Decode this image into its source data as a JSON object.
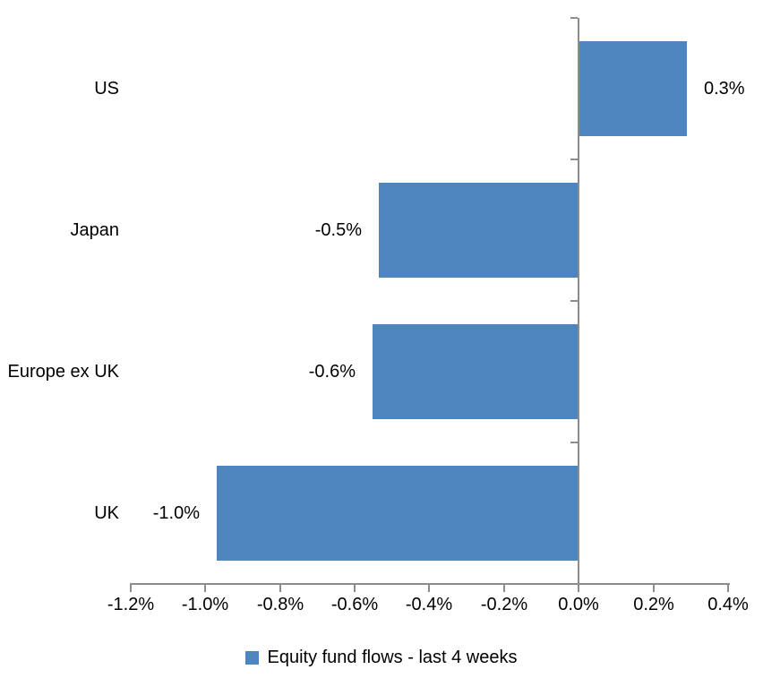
{
  "chart_data": {
    "type": "bar",
    "orientation": "horizontal",
    "title": "",
    "categories": [
      "US",
      "Japan",
      "Europe ex UK",
      "UK"
    ],
    "series": [
      {
        "name": "Equity fund flows - last 4 weeks",
        "values": [
          0.3,
          -0.5,
          -0.6,
          -1.0
        ],
        "value_labels": [
          "0.3%",
          "-0.5%",
          "-0.6%",
          "-1.0%"
        ],
        "bar_extents_as_drawn": [
          0.29,
          -0.535,
          -0.552,
          -0.969
        ],
        "color": "#4D86BE"
      }
    ],
    "xlabel": "",
    "ylabel": "",
    "xlim": [
      -1.2,
      0.4
    ],
    "x_tick_labels": [
      "-1.2%",
      "-1.0%",
      "-0.8%",
      "-0.6%",
      "-0.4%",
      "-0.2%",
      "0.0%",
      "0.2%",
      "0.4%"
    ],
    "x_tick_values": [
      -1.2,
      -1.0,
      -0.8,
      -0.6,
      -0.4,
      -0.2,
      0,
      0.2,
      0.4
    ],
    "grid": false,
    "data_labels": "outside-end",
    "legend_position": "bottom",
    "axis_color": "#8C8C8C",
    "text_color": "#000000",
    "background_color": "#FFFFFF"
  }
}
